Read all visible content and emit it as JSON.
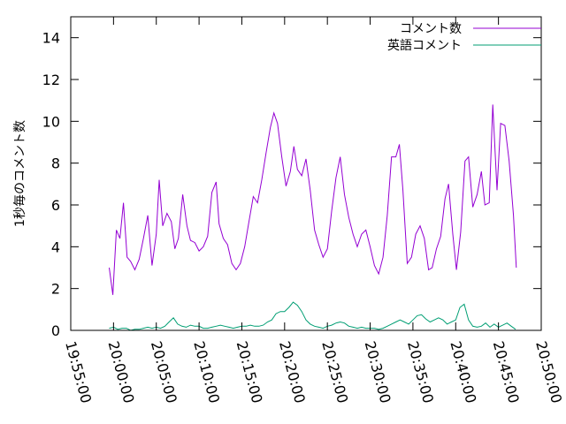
{
  "chart_data": {
    "type": "line",
    "title": "",
    "xlabel": "",
    "ylabel": "1秒毎のコメント数",
    "xlim": [
      "19:55:00",
      "20:50:00"
    ],
    "ylim": [
      0,
      15
    ],
    "xticks": [
      "19:55:00",
      "20:00:00",
      "20:05:00",
      "20:10:00",
      "20:15:00",
      "20:20:00",
      "20:25:00",
      "20:30:00",
      "20:35:00",
      "20:40:00",
      "20:45:00",
      "20:50:00"
    ],
    "yticks": [
      0,
      2,
      4,
      6,
      8,
      10,
      12,
      14
    ],
    "grid": false,
    "legend_position": "top-right",
    "series": [
      {
        "name": "コメント数",
        "color": "#9400d3",
        "points": [
          [
            "19:59:30",
            3.0
          ],
          [
            "19:59:55",
            1.7
          ],
          [
            "20:00:20",
            4.8
          ],
          [
            "20:00:45",
            4.4
          ],
          [
            "20:01:10",
            6.1
          ],
          [
            "20:01:35",
            3.5
          ],
          [
            "20:02:00",
            3.3
          ],
          [
            "20:02:30",
            2.9
          ],
          [
            "20:03:00",
            3.4
          ],
          [
            "20:03:30",
            4.4
          ],
          [
            "20:04:00",
            5.5
          ],
          [
            "20:04:30",
            3.1
          ],
          [
            "20:05:00",
            4.6
          ],
          [
            "20:05:20",
            7.2
          ],
          [
            "20:05:45",
            5.0
          ],
          [
            "20:06:15",
            5.6
          ],
          [
            "20:06:45",
            5.2
          ],
          [
            "20:07:10",
            3.9
          ],
          [
            "20:07:35",
            4.4
          ],
          [
            "20:08:05",
            6.5
          ],
          [
            "20:08:35",
            5.0
          ],
          [
            "20:09:00",
            4.3
          ],
          [
            "20:09:30",
            4.2
          ],
          [
            "20:10:00",
            3.8
          ],
          [
            "20:10:30",
            4.0
          ],
          [
            "20:11:00",
            4.5
          ],
          [
            "20:11:30",
            6.6
          ],
          [
            "20:12:00",
            7.1
          ],
          [
            "20:12:20",
            5.1
          ],
          [
            "20:12:50",
            4.4
          ],
          [
            "20:13:20",
            4.1
          ],
          [
            "20:13:50",
            3.2
          ],
          [
            "20:14:20",
            2.9
          ],
          [
            "20:14:50",
            3.2
          ],
          [
            "20:15:20",
            4.0
          ],
          [
            "20:15:50",
            5.2
          ],
          [
            "20:16:20",
            6.4
          ],
          [
            "20:16:50",
            6.1
          ],
          [
            "20:17:20",
            7.2
          ],
          [
            "20:17:50",
            8.5
          ],
          [
            "20:18:20",
            9.7
          ],
          [
            "20:18:45",
            10.4
          ],
          [
            "20:19:10",
            9.9
          ],
          [
            "20:19:40",
            8.3
          ],
          [
            "20:20:10",
            6.9
          ],
          [
            "20:20:40",
            7.6
          ],
          [
            "20:21:05",
            8.8
          ],
          [
            "20:21:30",
            7.7
          ],
          [
            "20:22:00",
            7.4
          ],
          [
            "20:22:30",
            8.2
          ],
          [
            "20:23:00",
            6.7
          ],
          [
            "20:23:30",
            4.8
          ],
          [
            "20:24:00",
            4.1
          ],
          [
            "20:24:30",
            3.5
          ],
          [
            "20:25:00",
            3.9
          ],
          [
            "20:25:30",
            5.7
          ],
          [
            "20:26:00",
            7.3
          ],
          [
            "20:26:30",
            8.3
          ],
          [
            "20:27:00",
            6.5
          ],
          [
            "20:27:30",
            5.4
          ],
          [
            "20:28:00",
            4.6
          ],
          [
            "20:28:30",
            4.0
          ],
          [
            "20:29:00",
            4.6
          ],
          [
            "20:29:30",
            4.8
          ],
          [
            "20:30:00",
            4.0
          ],
          [
            "20:30:30",
            3.1
          ],
          [
            "20:31:00",
            2.7
          ],
          [
            "20:31:30",
            3.5
          ],
          [
            "20:32:00",
            5.5
          ],
          [
            "20:32:30",
            8.3
          ],
          [
            "20:33:00",
            8.3
          ],
          [
            "20:33:25",
            8.9
          ],
          [
            "20:33:50",
            6.7
          ],
          [
            "20:34:20",
            3.2
          ],
          [
            "20:34:50",
            3.5
          ],
          [
            "20:35:20",
            4.6
          ],
          [
            "20:35:50",
            5.0
          ],
          [
            "20:36:20",
            4.4
          ],
          [
            "20:36:50",
            2.9
          ],
          [
            "20:37:15",
            3.0
          ],
          [
            "20:37:45",
            3.9
          ],
          [
            "20:38:15",
            4.5
          ],
          [
            "20:38:45",
            6.3
          ],
          [
            "20:39:10",
            7.0
          ],
          [
            "20:39:40",
            4.6
          ],
          [
            "20:40:05",
            2.9
          ],
          [
            "20:40:35",
            4.7
          ],
          [
            "20:41:05",
            8.1
          ],
          [
            "20:41:30",
            8.3
          ],
          [
            "20:42:00",
            5.9
          ],
          [
            "20:42:30",
            6.5
          ],
          [
            "20:43:00",
            7.6
          ],
          [
            "20:43:25",
            6.0
          ],
          [
            "20:43:55",
            6.1
          ],
          [
            "20:44:20",
            10.8
          ],
          [
            "20:44:50",
            6.7
          ],
          [
            "20:45:15",
            9.9
          ],
          [
            "20:45:45",
            9.8
          ],
          [
            "20:46:15",
            8.1
          ],
          [
            "20:46:45",
            5.5
          ],
          [
            "20:47:05",
            3.0
          ]
        ]
      },
      {
        "name": "英語コメント",
        "color": "#009e73",
        "points": [
          [
            "19:59:30",
            0.1
          ],
          [
            "20:00:00",
            0.15
          ],
          [
            "20:00:30",
            0.05
          ],
          [
            "20:01:00",
            0.1
          ],
          [
            "20:01:30",
            0.1
          ],
          [
            "20:02:00",
            0.0
          ],
          [
            "20:02:30",
            0.05
          ],
          [
            "20:03:00",
            0.05
          ],
          [
            "20:03:30",
            0.1
          ],
          [
            "20:04:00",
            0.15
          ],
          [
            "20:04:30",
            0.1
          ],
          [
            "20:05:00",
            0.15
          ],
          [
            "20:05:30",
            0.1
          ],
          [
            "20:06:00",
            0.2
          ],
          [
            "20:06:30",
            0.4
          ],
          [
            "20:07:00",
            0.6
          ],
          [
            "20:07:30",
            0.3
          ],
          [
            "20:08:00",
            0.2
          ],
          [
            "20:08:30",
            0.15
          ],
          [
            "20:09:00",
            0.25
          ],
          [
            "20:09:30",
            0.2
          ],
          [
            "20:10:00",
            0.2
          ],
          [
            "20:10:30",
            0.1
          ],
          [
            "20:11:00",
            0.1
          ],
          [
            "20:11:30",
            0.15
          ],
          [
            "20:12:00",
            0.2
          ],
          [
            "20:12:30",
            0.25
          ],
          [
            "20:13:00",
            0.2
          ],
          [
            "20:13:30",
            0.15
          ],
          [
            "20:14:00",
            0.1
          ],
          [
            "20:14:30",
            0.15
          ],
          [
            "20:15:00",
            0.2
          ],
          [
            "20:15:30",
            0.2
          ],
          [
            "20:16:00",
            0.25
          ],
          [
            "20:16:30",
            0.2
          ],
          [
            "20:17:00",
            0.2
          ],
          [
            "20:17:30",
            0.25
          ],
          [
            "20:18:00",
            0.4
          ],
          [
            "20:18:30",
            0.5
          ],
          [
            "20:19:00",
            0.8
          ],
          [
            "20:19:30",
            0.9
          ],
          [
            "20:20:00",
            0.9
          ],
          [
            "20:20:30",
            1.1
          ],
          [
            "20:21:00",
            1.35
          ],
          [
            "20:21:30",
            1.2
          ],
          [
            "20:22:00",
            0.9
          ],
          [
            "20:22:30",
            0.5
          ],
          [
            "20:23:00",
            0.3
          ],
          [
            "20:23:30",
            0.2
          ],
          [
            "20:24:00",
            0.15
          ],
          [
            "20:24:30",
            0.1
          ],
          [
            "20:25:00",
            0.2
          ],
          [
            "20:25:30",
            0.25
          ],
          [
            "20:26:00",
            0.35
          ],
          [
            "20:26:30",
            0.4
          ],
          [
            "20:27:00",
            0.35
          ],
          [
            "20:27:30",
            0.2
          ],
          [
            "20:28:00",
            0.15
          ],
          [
            "20:28:30",
            0.1
          ],
          [
            "20:29:00",
            0.15
          ],
          [
            "20:29:30",
            0.1
          ],
          [
            "20:30:00",
            0.1
          ],
          [
            "20:30:30",
            0.1
          ],
          [
            "20:31:00",
            0.05
          ],
          [
            "20:31:30",
            0.1
          ],
          [
            "20:32:00",
            0.2
          ],
          [
            "20:32:30",
            0.3
          ],
          [
            "20:33:00",
            0.4
          ],
          [
            "20:33:30",
            0.5
          ],
          [
            "20:34:00",
            0.4
          ],
          [
            "20:34:30",
            0.3
          ],
          [
            "20:35:00",
            0.5
          ],
          [
            "20:35:30",
            0.7
          ],
          [
            "20:36:00",
            0.75
          ],
          [
            "20:36:30",
            0.55
          ],
          [
            "20:37:00",
            0.4
          ],
          [
            "20:37:30",
            0.5
          ],
          [
            "20:38:00",
            0.6
          ],
          [
            "20:38:30",
            0.5
          ],
          [
            "20:39:00",
            0.3
          ],
          [
            "20:39:30",
            0.4
          ],
          [
            "20:40:00",
            0.5
          ],
          [
            "20:40:30",
            1.1
          ],
          [
            "20:41:00",
            1.25
          ],
          [
            "20:41:30",
            0.5
          ],
          [
            "20:42:00",
            0.2
          ],
          [
            "20:42:30",
            0.15
          ],
          [
            "20:43:00",
            0.2
          ],
          [
            "20:43:30",
            0.35
          ],
          [
            "20:44:00",
            0.15
          ],
          [
            "20:44:30",
            0.3
          ],
          [
            "20:45:00",
            0.15
          ],
          [
            "20:45:30",
            0.25
          ],
          [
            "20:46:00",
            0.35
          ],
          [
            "20:46:30",
            0.2
          ],
          [
            "20:47:00",
            0.05
          ]
        ]
      }
    ]
  }
}
